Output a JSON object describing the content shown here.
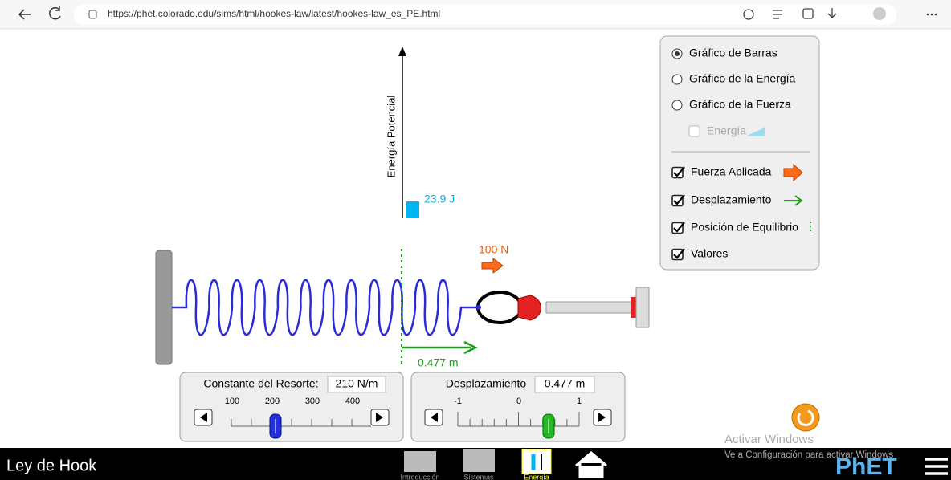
{
  "browser": {
    "url": "https://phet.colorado.edu/sims/html/hookes-law/latest/hookes-law_es_PE.html"
  },
  "graph": {
    "axis_label": "Energía Potencial",
    "value": "23.9 J"
  },
  "scene": {
    "applied_force": "100 N",
    "displacement": "0.477 m"
  },
  "options": {
    "radios": [
      "Gráfico de Barras",
      "Gráfico de la Energía",
      "Gráfico de la Fuerza"
    ],
    "energy": "Energía",
    "checkboxes": [
      "Fuerza Aplicada",
      "Desplazamiento",
      "Posición de Equilibrio",
      "Valores"
    ]
  },
  "controls": {
    "spring_constant": {
      "label": "Constante del Resorte:",
      "value": "210 N/m",
      "ticks": [
        "100",
        "200",
        "300",
        "400"
      ]
    },
    "displacement": {
      "label": "Desplazamiento",
      "value": "0.477 m",
      "ticks": [
        "-1",
        "0",
        "1"
      ]
    }
  },
  "footer": {
    "title": "Ley de Hook",
    "screens": [
      "Introducción",
      "Sistemas",
      "Energía"
    ],
    "brand": "PhET"
  },
  "watermark": {
    "title": "Activar Windows",
    "subtitle": "Ve a Configuración para activar Windows"
  }
}
